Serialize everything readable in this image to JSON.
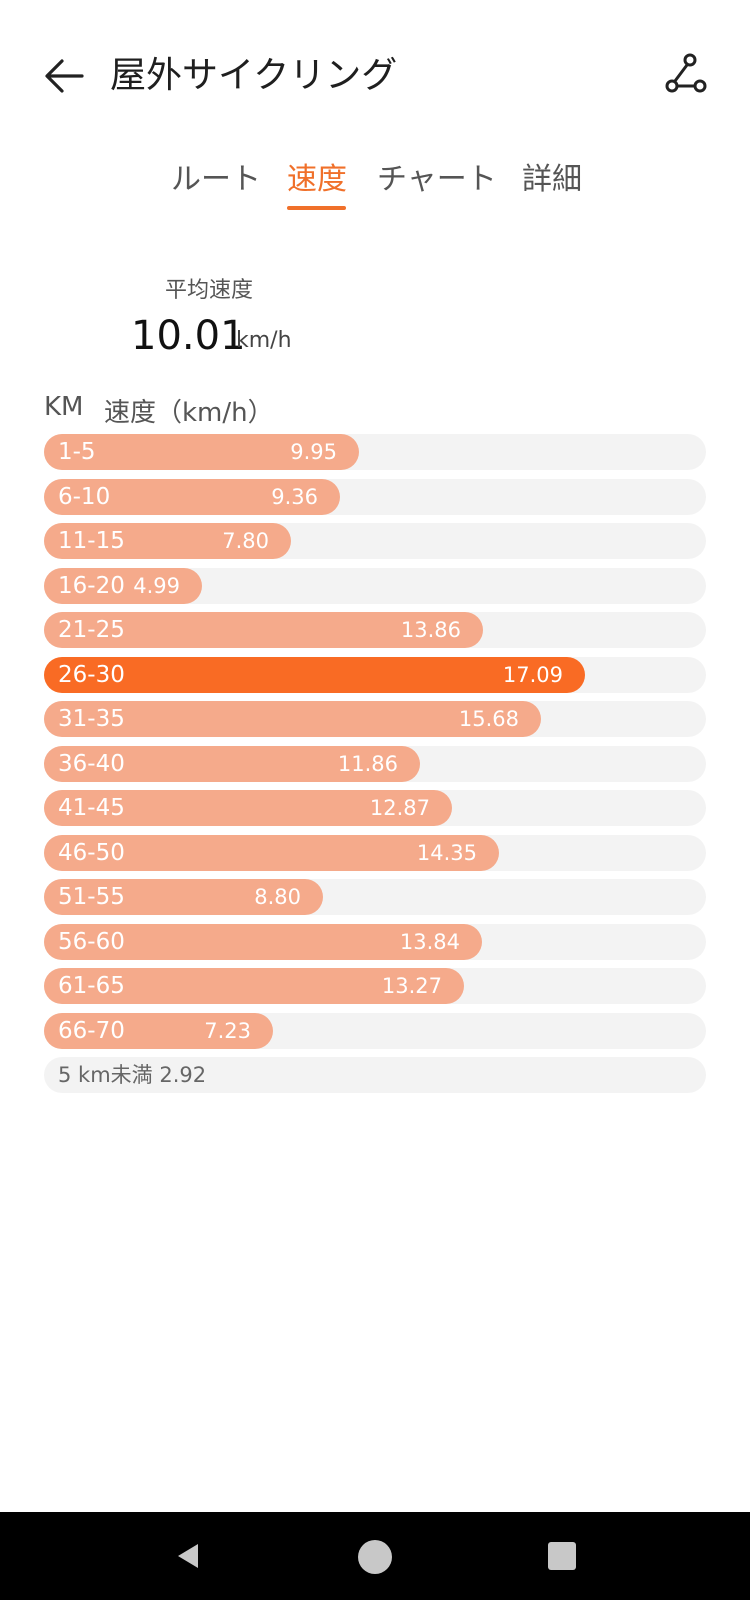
{
  "header": {
    "title": "屋外サイクリング",
    "back_icon": "arrow-left-icon",
    "route_icon": "route-share-icon"
  },
  "tabs": [
    {
      "label": "ルート",
      "active": false
    },
    {
      "label": "速度",
      "active": true
    },
    {
      "label": "チャート",
      "active": false
    },
    {
      "label": "詳細",
      "active": false
    }
  ],
  "summary": {
    "avg_label": "平均速度",
    "avg_value": "10.01",
    "avg_unit": "km/h"
  },
  "table": {
    "col_km": "KM",
    "col_speed": "速度（km/h）",
    "max_speed": 20.9,
    "rows": [
      {
        "range": "1-5",
        "speed": 9.95,
        "speed_label": "9.95",
        "highlight": false
      },
      {
        "range": "6-10",
        "speed": 9.36,
        "speed_label": "9.36",
        "highlight": false
      },
      {
        "range": "11-15",
        "speed": 7.8,
        "speed_label": "7.80",
        "highlight": false
      },
      {
        "range": "16-20",
        "speed": 4.99,
        "speed_label": "4.99",
        "highlight": false
      },
      {
        "range": "21-25",
        "speed": 13.86,
        "speed_label": "13.86",
        "highlight": false
      },
      {
        "range": "26-30",
        "speed": 17.09,
        "speed_label": "17.09",
        "highlight": true
      },
      {
        "range": "31-35",
        "speed": 15.68,
        "speed_label": "15.68",
        "highlight": false
      },
      {
        "range": "36-40",
        "speed": 11.86,
        "speed_label": "11.86",
        "highlight": false
      },
      {
        "range": "41-45",
        "speed": 12.87,
        "speed_label": "12.87",
        "highlight": false
      },
      {
        "range": "46-50",
        "speed": 14.35,
        "speed_label": "14.35",
        "highlight": false
      },
      {
        "range": "51-55",
        "speed": 8.8,
        "speed_label": "8.80",
        "highlight": false
      },
      {
        "range": "56-60",
        "speed": 13.84,
        "speed_label": "13.84",
        "highlight": false
      },
      {
        "range": "61-65",
        "speed": 13.27,
        "speed_label": "13.27",
        "highlight": false
      },
      {
        "range": "66-70",
        "speed": 7.23,
        "speed_label": "7.23",
        "highlight": false
      }
    ],
    "under_5km_label": "5 km未満 2.92"
  },
  "colors": {
    "accent": "#f0702a",
    "bar": "#f5aa8b",
    "bar_highlight": "#f96b24",
    "track": "#f3f3f3"
  },
  "navbar": {
    "back_icon": "nav-back-triangle-icon",
    "home_icon": "nav-home-circle-icon",
    "recent_icon": "nav-recent-square-icon"
  }
}
